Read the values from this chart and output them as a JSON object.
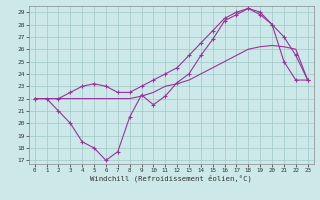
{
  "bg_color": "#cce8e8",
  "grid_color": "#a0c8c8",
  "line_color": "#993399",
  "xlabel": "Windchill (Refroidissement éolien,°C)",
  "xlim": [
    -0.5,
    23.5
  ],
  "ylim": [
    16.7,
    29.5
  ],
  "yticks": [
    17,
    18,
    19,
    20,
    21,
    22,
    23,
    24,
    25,
    26,
    27,
    28,
    29
  ],
  "xticks": [
    0,
    1,
    2,
    3,
    4,
    5,
    6,
    7,
    8,
    9,
    10,
    11,
    12,
    13,
    14,
    15,
    16,
    17,
    18,
    19,
    20,
    21,
    22,
    23
  ],
  "line1_x": [
    0,
    1,
    2,
    3,
    4,
    5,
    6,
    7,
    8,
    9,
    10,
    11,
    12,
    13,
    14,
    15,
    16,
    17,
    18,
    19,
    20,
    21,
    22,
    23
  ],
  "line1_y": [
    22,
    22,
    21,
    20,
    18.5,
    18,
    17,
    17.7,
    20.5,
    22.3,
    21.5,
    22.2,
    23.3,
    24,
    25.5,
    26.8,
    28.3,
    28.8,
    29.3,
    28.8,
    28,
    25,
    23.5,
    23.5
  ],
  "line2_x": [
    0,
    2,
    3,
    4,
    5,
    6,
    7,
    8,
    9,
    10,
    11,
    12,
    13,
    14,
    15,
    16,
    17,
    18,
    19,
    20,
    21,
    22,
    23
  ],
  "line2_y": [
    22,
    22,
    22.5,
    23,
    23.2,
    23,
    22.5,
    22.5,
    23,
    23.5,
    24,
    24.5,
    25.5,
    26.5,
    27.5,
    28.5,
    29,
    29.3,
    29,
    28,
    27,
    25.5,
    23.5
  ],
  "line3_x": [
    0,
    1,
    2,
    3,
    4,
    5,
    6,
    7,
    8,
    9,
    10,
    11,
    12,
    13,
    14,
    15,
    16,
    17,
    18,
    19,
    20,
    21,
    22,
    23
  ],
  "line3_y": [
    22,
    22,
    22,
    22,
    22,
    22,
    22,
    22,
    22,
    22.2,
    22.5,
    23,
    23.2,
    23.5,
    24,
    24.5,
    25,
    25.5,
    26,
    26.2,
    26.3,
    26.2,
    26,
    23.5
  ]
}
